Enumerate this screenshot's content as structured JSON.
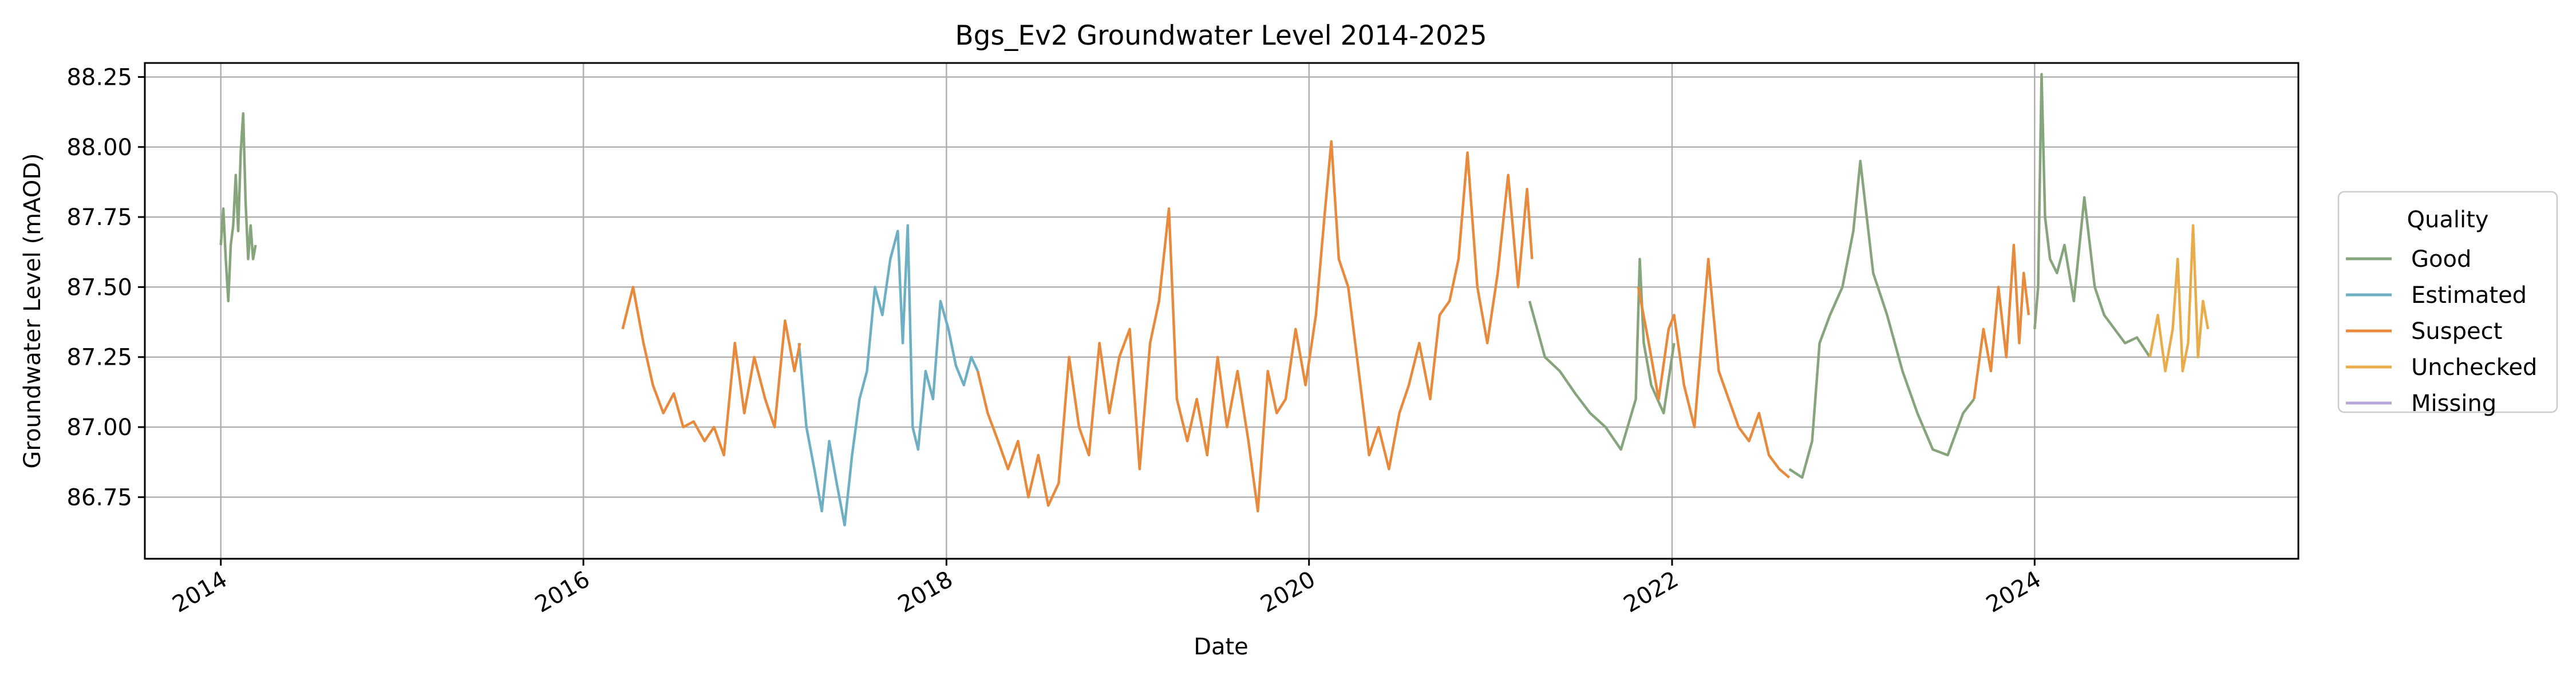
{
  "chart_data": {
    "type": "line",
    "title": "Bgs_Ev2 Groundwater Level 2014-2025",
    "xlabel": "Date",
    "ylabel": "Groundwater Level (mAOD)",
    "x_type": "date",
    "xlim": [
      "2013-08-01",
      "2025-06-15"
    ],
    "ylim": [
      86.53,
      88.3
    ],
    "x_ticks": [
      "2014",
      "2016",
      "2018",
      "2020",
      "2022",
      "2024"
    ],
    "y_ticks": [
      "86.75",
      "87.00",
      "87.25",
      "87.50",
      "87.75",
      "88.00",
      "88.25"
    ],
    "grid": true,
    "legend": {
      "title": "Quality",
      "position": "right-outside",
      "entries": [
        "Good",
        "Estimated",
        "Suspect",
        "Unchecked",
        "Missing"
      ]
    },
    "series": [
      {
        "name": "Good",
        "color": "#86a57c",
        "segments": [
          {
            "x": [
              "2014-01-01",
              "2014-01-06",
              "2014-01-11",
              "2014-01-16",
              "2014-01-21",
              "2014-01-26",
              "2014-01-31",
              "2014-02-05",
              "2014-02-10",
              "2014-02-15",
              "2014-02-20",
              "2014-02-25",
              "2014-03-02",
              "2014-03-07",
              "2014-03-12"
            ],
            "y": [
              87.65,
              87.78,
              87.6,
              87.45,
              87.65,
              87.72,
              87.9,
              87.7,
              87.98,
              88.12,
              87.8,
              87.6,
              87.72,
              87.6,
              87.65
            ]
          },
          {
            "x": [
              "2021-03-20",
              "2021-04-20",
              "2021-05-20",
              "2021-06-20",
              "2021-07-20",
              "2021-08-20",
              "2021-09-20",
              "2021-10-20",
              "2021-10-28",
              "2021-11-05",
              "2021-11-20",
              "2021-12-15",
              "2022-01-05"
            ],
            "y": [
              87.45,
              87.25,
              87.2,
              87.12,
              87.05,
              87.0,
              86.92,
              87.1,
              87.6,
              87.3,
              87.15,
              87.05,
              87.3
            ]
          },
          {
            "x": [
              "2022-08-25",
              "2022-09-20",
              "2022-10-10",
              "2022-10-25",
              "2022-11-15",
              "2022-12-10",
              "2023-01-01",
              "2023-01-15",
              "2023-02-10",
              "2023-03-10",
              "2023-04-10",
              "2023-05-10",
              "2023-06-10",
              "2023-07-10",
              "2023-08-10",
              "2023-09-01"
            ],
            "y": [
              86.85,
              86.82,
              86.95,
              87.3,
              87.4,
              87.5,
              87.7,
              87.95,
              87.55,
              87.4,
              87.2,
              87.05,
              86.92,
              86.9,
              87.05,
              87.1
            ]
          },
          {
            "x": [
              "2024-01-01",
              "2024-01-08",
              "2024-01-15",
              "2024-01-22",
              "2024-02-01",
              "2024-02-15",
              "2024-03-01",
              "2024-03-20",
              "2024-04-10",
              "2024-05-01",
              "2024-05-20",
              "2024-06-10",
              "2024-07-01",
              "2024-07-25",
              "2024-08-20"
            ],
            "y": [
              87.35,
              87.5,
              88.26,
              87.75,
              87.6,
              87.55,
              87.65,
              87.45,
              87.82,
              87.5,
              87.4,
              87.35,
              87.3,
              87.32,
              87.25
            ]
          }
        ]
      },
      {
        "name": "Estimated",
        "color": "#6fafc4",
        "segments": [
          {
            "x": [
              "2017-03-10",
              "2017-03-25",
              "2017-04-10",
              "2017-04-25",
              "2017-05-10",
              "2017-05-25",
              "2017-06-10",
              "2017-06-25",
              "2017-07-10",
              "2017-07-25",
              "2017-08-10",
              "2017-08-25",
              "2017-09-10",
              "2017-09-25",
              "2017-10-05",
              "2017-10-15",
              "2017-10-25",
              "2017-11-05",
              "2017-11-20",
              "2017-12-05",
              "2017-12-20",
              "2018-01-05",
              "2018-01-20",
              "2018-02-05",
              "2018-02-20",
              "2018-03-05"
            ],
            "y": [
              87.3,
              87.0,
              86.85,
              86.7,
              86.95,
              86.8,
              86.65,
              86.9,
              87.1,
              87.2,
              87.5,
              87.4,
              87.6,
              87.7,
              87.3,
              87.72,
              87.0,
              86.92,
              87.2,
              87.1,
              87.45,
              87.35,
              87.22,
              87.15,
              87.25,
              87.2
            ]
          }
        ]
      },
      {
        "name": "Suspect",
        "color": "#e78a3c",
        "segments": [
          {
            "x": [
              "2016-03-20",
              "2016-04-10",
              "2016-05-01",
              "2016-05-20",
              "2016-06-10",
              "2016-07-01",
              "2016-07-20",
              "2016-08-10",
              "2016-09-01",
              "2016-09-20",
              "2016-10-10",
              "2016-11-01",
              "2016-11-20",
              "2016-12-10",
              "2017-01-01",
              "2017-01-20",
              "2017-02-10",
              "2017-03-01",
              "2017-03-12"
            ],
            "y": [
              87.35,
              87.5,
              87.3,
              87.15,
              87.05,
              87.12,
              87.0,
              87.02,
              86.95,
              87.0,
              86.9,
              87.3,
              87.05,
              87.25,
              87.1,
              87.0,
              87.38,
              87.2,
              87.3
            ]
          },
          {
            "x": [
              "2018-03-05",
              "2018-03-25",
              "2018-04-15",
              "2018-05-05",
              "2018-05-25",
              "2018-06-15",
              "2018-07-05",
              "2018-07-25",
              "2018-08-15",
              "2018-09-05",
              "2018-09-25",
              "2018-10-15",
              "2018-11-05",
              "2018-11-25",
              "2018-12-15",
              "2019-01-05",
              "2019-01-25",
              "2019-02-15",
              "2019-03-05",
              "2019-03-25",
              "2019-04-10",
              "2019-05-01",
              "2019-05-20",
              "2019-06-10",
              "2019-07-01",
              "2019-07-20",
              "2019-08-10",
              "2019-09-01",
              "2019-09-20",
              "2019-10-10",
              "2019-10-28",
              "2019-11-15",
              "2019-12-05",
              "2019-12-25",
              "2020-01-15",
              "2020-02-01",
              "2020-02-15",
              "2020-03-01",
              "2020-03-20",
              "2020-04-10",
              "2020-05-01",
              "2020-05-20",
              "2020-06-10",
              "2020-07-01",
              "2020-07-20",
              "2020-08-10",
              "2020-09-01",
              "2020-09-20",
              "2020-10-10",
              "2020-10-28",
              "2020-11-15",
              "2020-12-05",
              "2020-12-25",
              "2021-01-15",
              "2021-02-05",
              "2021-02-25",
              "2021-03-15",
              "2021-03-25"
            ],
            "y": [
              87.2,
              87.05,
              86.95,
              86.85,
              86.95,
              86.75,
              86.9,
              86.72,
              86.8,
              87.25,
              87.0,
              86.9,
              87.3,
              87.05,
              87.25,
              87.35,
              86.85,
              87.3,
              87.45,
              87.78,
              87.1,
              86.95,
              87.1,
              86.9,
              87.25,
              87.0,
              87.2,
              86.95,
              86.7,
              87.2,
              87.05,
              87.1,
              87.35,
              87.15,
              87.4,
              87.75,
              88.02,
              87.6,
              87.5,
              87.2,
              86.9,
              87.0,
              86.85,
              87.05,
              87.15,
              87.3,
              87.1,
              87.4,
              87.45,
              87.6,
              87.98,
              87.5,
              87.3,
              87.55,
              87.9,
              87.5,
              87.85,
              87.6
            ]
          },
          {
            "x": [
              "2021-10-25",
              "2021-11-15",
              "2021-12-05",
              "2021-12-25",
              "2022-01-05",
              "2022-01-25",
              "2022-02-15",
              "2022-03-01",
              "2022-03-15",
              "2022-04-05",
              "2022-04-25",
              "2022-05-15",
              "2022-06-05",
              "2022-06-25",
              "2022-07-15",
              "2022-08-05",
              "2022-08-25"
            ],
            "y": [
              87.5,
              87.3,
              87.1,
              87.35,
              87.4,
              87.15,
              87.0,
              87.3,
              87.6,
              87.2,
              87.1,
              87.0,
              86.95,
              87.05,
              86.9,
              86.85,
              86.82
            ]
          },
          {
            "x": [
              "2023-09-01",
              "2023-09-20",
              "2023-10-05",
              "2023-10-20",
              "2023-11-05",
              "2023-11-20",
              "2023-12-01",
              "2023-12-10",
              "2023-12-20"
            ],
            "y": [
              87.1,
              87.35,
              87.2,
              87.5,
              87.25,
              87.65,
              87.3,
              87.55,
              87.4
            ]
          }
        ]
      },
      {
        "name": "Unchecked",
        "color": "#e9ac4b",
        "segments": [
          {
            "x": [
              "2024-08-20",
              "2024-09-05",
              "2024-09-20",
              "2024-10-05",
              "2024-10-15",
              "2024-10-25",
              "2024-11-05",
              "2024-11-15",
              "2024-11-25",
              "2024-12-05",
              "2024-12-15"
            ],
            "y": [
              87.25,
              87.4,
              87.2,
              87.35,
              87.6,
              87.2,
              87.3,
              87.72,
              87.25,
              87.45,
              87.35
            ]
          }
        ]
      },
      {
        "name": "Missing",
        "color": "#b6a8d6",
        "segments": []
      }
    ]
  }
}
